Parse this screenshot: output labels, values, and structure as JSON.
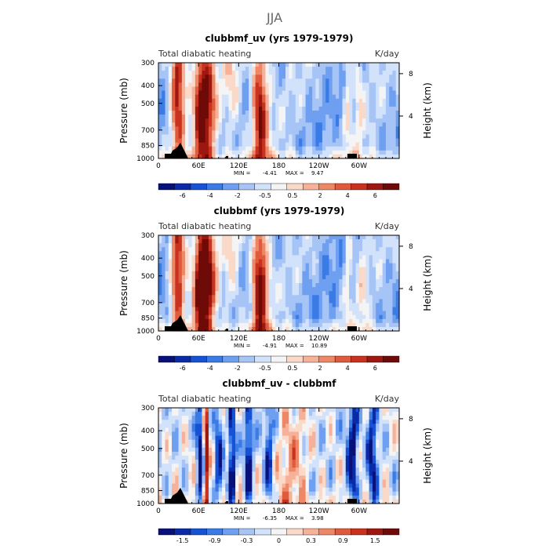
{
  "figure": {
    "season": "JJA"
  },
  "colors": {
    "heating_scale": [
      "#08107a",
      "#0b2aa8",
      "#1652d6",
      "#3a7be6",
      "#6e9ff0",
      "#a6c4f5",
      "#d2e2fa",
      "#f4f4f4",
      "#fbd9c8",
      "#f6b198",
      "#ee8766",
      "#e05a3e",
      "#c8321e",
      "#9e1710",
      "#6e0a07"
    ],
    "mask": "#000000"
  },
  "chart_data": [
    {
      "type": "heatmap",
      "title": "clubbmf_uv (yrs 1979-1979)",
      "left_label": "Total diabatic heating",
      "units_label": "K/day",
      "ylabel": "Pressure (mb)",
      "ylabel_right": "Height (km)",
      "x_ticks": [
        "0",
        "60E",
        "120E",
        "180",
        "120W",
        "60W"
      ],
      "y_ticks": [
        "300",
        "400",
        "500",
        "700",
        "850",
        "1000"
      ],
      "y_right_ticks": [
        "8",
        "4"
      ],
      "stats": {
        "min_label": "MIN =",
        "min": "-4.41",
        "max_label": "MAX =",
        "max": "9.47"
      },
      "colorbar_labels": [
        "-6",
        "-4",
        "-2",
        "-0.5",
        "0.5",
        "2",
        "4",
        "6"
      ],
      "xlim": [
        0,
        360
      ],
      "ylim": [
        1000,
        300
      ],
      "features": [
        {
          "lon": 28,
          "center": 0.5,
          "width": 10,
          "amplitude": 4
        },
        {
          "lon": 30,
          "center": 0.0,
          "width": 12,
          "amplitude": 6
        },
        {
          "lon": 62,
          "center": 0.5,
          "width": 10,
          "amplitude": 7
        },
        {
          "lon": 75,
          "center": 0.5,
          "width": 12,
          "amplitude": 7
        },
        {
          "lon": 110,
          "center": 0.2,
          "width": 14,
          "amplitude": 3
        },
        {
          "lon": 152,
          "center": 0.5,
          "width": 12,
          "amplitude": 9
        },
        {
          "lon": 283,
          "center": 0.1,
          "width": 6,
          "amplitude": 3
        },
        {
          "lon": 300,
          "center": 0.4,
          "width": 8,
          "amplitude": 2
        }
      ],
      "background": -3
    },
    {
      "type": "heatmap",
      "title": "clubbmf (yrs 1979-1979)",
      "left_label": "Total diabatic heating",
      "units_label": "K/day",
      "ylabel": "Pressure (mb)",
      "ylabel_right": "Height (km)",
      "x_ticks": [
        "0",
        "60E",
        "120E",
        "180",
        "120W",
        "60W"
      ],
      "y_ticks": [
        "300",
        "400",
        "500",
        "700",
        "850",
        "1000"
      ],
      "y_right_ticks": [
        "8",
        "4"
      ],
      "stats": {
        "min_label": "MIN =",
        "min": "-4.91",
        "max_label": "MAX =",
        "max": "10.89"
      },
      "colorbar_labels": [
        "-6",
        "-4",
        "-2",
        "-0.5",
        "0.5",
        "2",
        "4",
        "6"
      ],
      "xlim": [
        0,
        360
      ],
      "ylim": [
        1000,
        300
      ],
      "features": [
        {
          "lon": 28,
          "center": 0.5,
          "width": 10,
          "amplitude": 4
        },
        {
          "lon": 30,
          "center": 0.0,
          "width": 12,
          "amplitude": 6
        },
        {
          "lon": 62,
          "center": 0.5,
          "width": 10,
          "amplitude": 8
        },
        {
          "lon": 75,
          "center": 0.5,
          "width": 12,
          "amplitude": 8
        },
        {
          "lon": 110,
          "center": 0.2,
          "width": 14,
          "amplitude": 3
        },
        {
          "lon": 152,
          "center": 0.5,
          "width": 12,
          "amplitude": 10
        },
        {
          "lon": 283,
          "center": 0.1,
          "width": 6,
          "amplitude": 3
        },
        {
          "lon": 305,
          "center": 0.4,
          "width": 8,
          "amplitude": 2
        }
      ],
      "background": -3.2
    },
    {
      "type": "heatmap",
      "title": "clubbmf_uv - clubbmf",
      "left_label": "Total diabatic heating",
      "units_label": "K/day",
      "ylabel": "Pressure (mb)",
      "ylabel_right": "Height (km)",
      "x_ticks": [
        "0",
        "60E",
        "120E",
        "180",
        "120W",
        "60W"
      ],
      "y_ticks": [
        "300",
        "400",
        "500",
        "700",
        "850",
        "1000"
      ],
      "y_right_ticks": [
        "8",
        "4"
      ],
      "stats": {
        "min_label": "MIN =",
        "min": "-6.35",
        "max_label": "MAX =",
        "max": "3.98"
      },
      "colorbar_labels": [
        "-1.5",
        "-0.9",
        "-0.3",
        "0",
        "0.3",
        "0.9",
        "1.5"
      ],
      "xlim": [
        0,
        360
      ],
      "ylim": [
        1000,
        300
      ],
      "features": [
        {
          "lon": 62,
          "center": 0.5,
          "width": 5,
          "amplitude": -2
        },
        {
          "lon": 72,
          "center": 0.5,
          "width": 4,
          "amplitude": 2
        },
        {
          "lon": 90,
          "center": 0.5,
          "width": 6,
          "amplitude": -1.5
        },
        {
          "lon": 110,
          "center": 0.5,
          "width": 5,
          "amplitude": -2
        },
        {
          "lon": 135,
          "center": 0.5,
          "width": 6,
          "amplitude": -1.8
        },
        {
          "lon": 165,
          "center": 0.5,
          "width": 6,
          "amplitude": -1.5
        },
        {
          "lon": 200,
          "center": 0.7,
          "width": 20,
          "amplitude": 0.8
        },
        {
          "lon": 290,
          "center": 0.5,
          "width": 8,
          "amplitude": -2
        },
        {
          "lon": 320,
          "center": 0.5,
          "width": 8,
          "amplitude": -1.8
        }
      ],
      "background": -0.3
    }
  ]
}
